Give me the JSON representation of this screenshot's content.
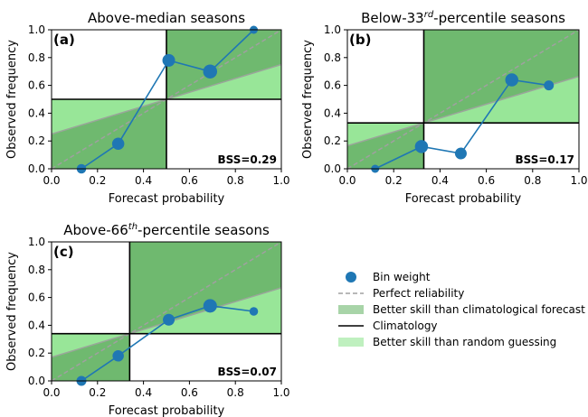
{
  "axis_labels": {
    "xlabel": "Forecast probability",
    "ylabel": "Observed frequency"
  },
  "ticks": [
    "0.0",
    "0.2",
    "0.4",
    "0.6",
    "0.8",
    "1.0"
  ],
  "colors": {
    "line": "#1f77b4",
    "marker": "#1f77b4",
    "perfect": "#a0a0a0",
    "better_clim": "#6fb96f",
    "better_random": "#98e698",
    "climatology": "#000000"
  },
  "chart_data": [
    {
      "type": "line",
      "title": "Above-median seasons",
      "panel_label": "(a)",
      "bss_label": "BSS=0.29",
      "climatology": 0.5,
      "xlim": [
        0,
        1
      ],
      "ylim": [
        0,
        1
      ],
      "x": [
        0.13,
        0.29,
        0.51,
        0.69,
        0.88
      ],
      "y": [
        0.0,
        0.18,
        0.78,
        0.7,
        1.0
      ],
      "weights": [
        0.45,
        0.75,
        0.8,
        0.95,
        0.3
      ]
    },
    {
      "type": "line",
      "title_parts": [
        "Below-33",
        "rd",
        "-percentile seasons"
      ],
      "panel_label": "(b)",
      "bss_label": "BSS=0.17",
      "climatology": 0.33,
      "xlim": [
        0,
        1
      ],
      "ylim": [
        0,
        1
      ],
      "x": [
        0.12,
        0.32,
        0.49,
        0.71,
        0.87
      ],
      "y": [
        0.0,
        0.16,
        0.11,
        0.64,
        0.6
      ],
      "weights": [
        0.3,
        0.85,
        0.7,
        0.85,
        0.5
      ]
    },
    {
      "type": "line",
      "title_parts": [
        "Above-66",
        "th",
        "-percentile seasons"
      ],
      "panel_label": "(c)",
      "bss_label": "BSS=0.07",
      "climatology": 0.34,
      "xlim": [
        0,
        1
      ],
      "ylim": [
        0,
        1
      ],
      "x": [
        0.13,
        0.29,
        0.51,
        0.69,
        0.88
      ],
      "y": [
        0.0,
        0.18,
        0.44,
        0.54,
        0.5
      ],
      "weights": [
        0.5,
        0.65,
        0.7,
        0.9,
        0.35
      ]
    }
  ],
  "legend": {
    "entries": [
      {
        "kind": "marker",
        "label": "Bin weight"
      },
      {
        "kind": "dash",
        "label": "Perfect reliability"
      },
      {
        "kind": "patch_clim",
        "label": "Better skill than climatological forecast"
      },
      {
        "kind": "solid",
        "label": "Climatology"
      },
      {
        "kind": "patch_random",
        "label": "Better skill than random guessing"
      }
    ]
  }
}
